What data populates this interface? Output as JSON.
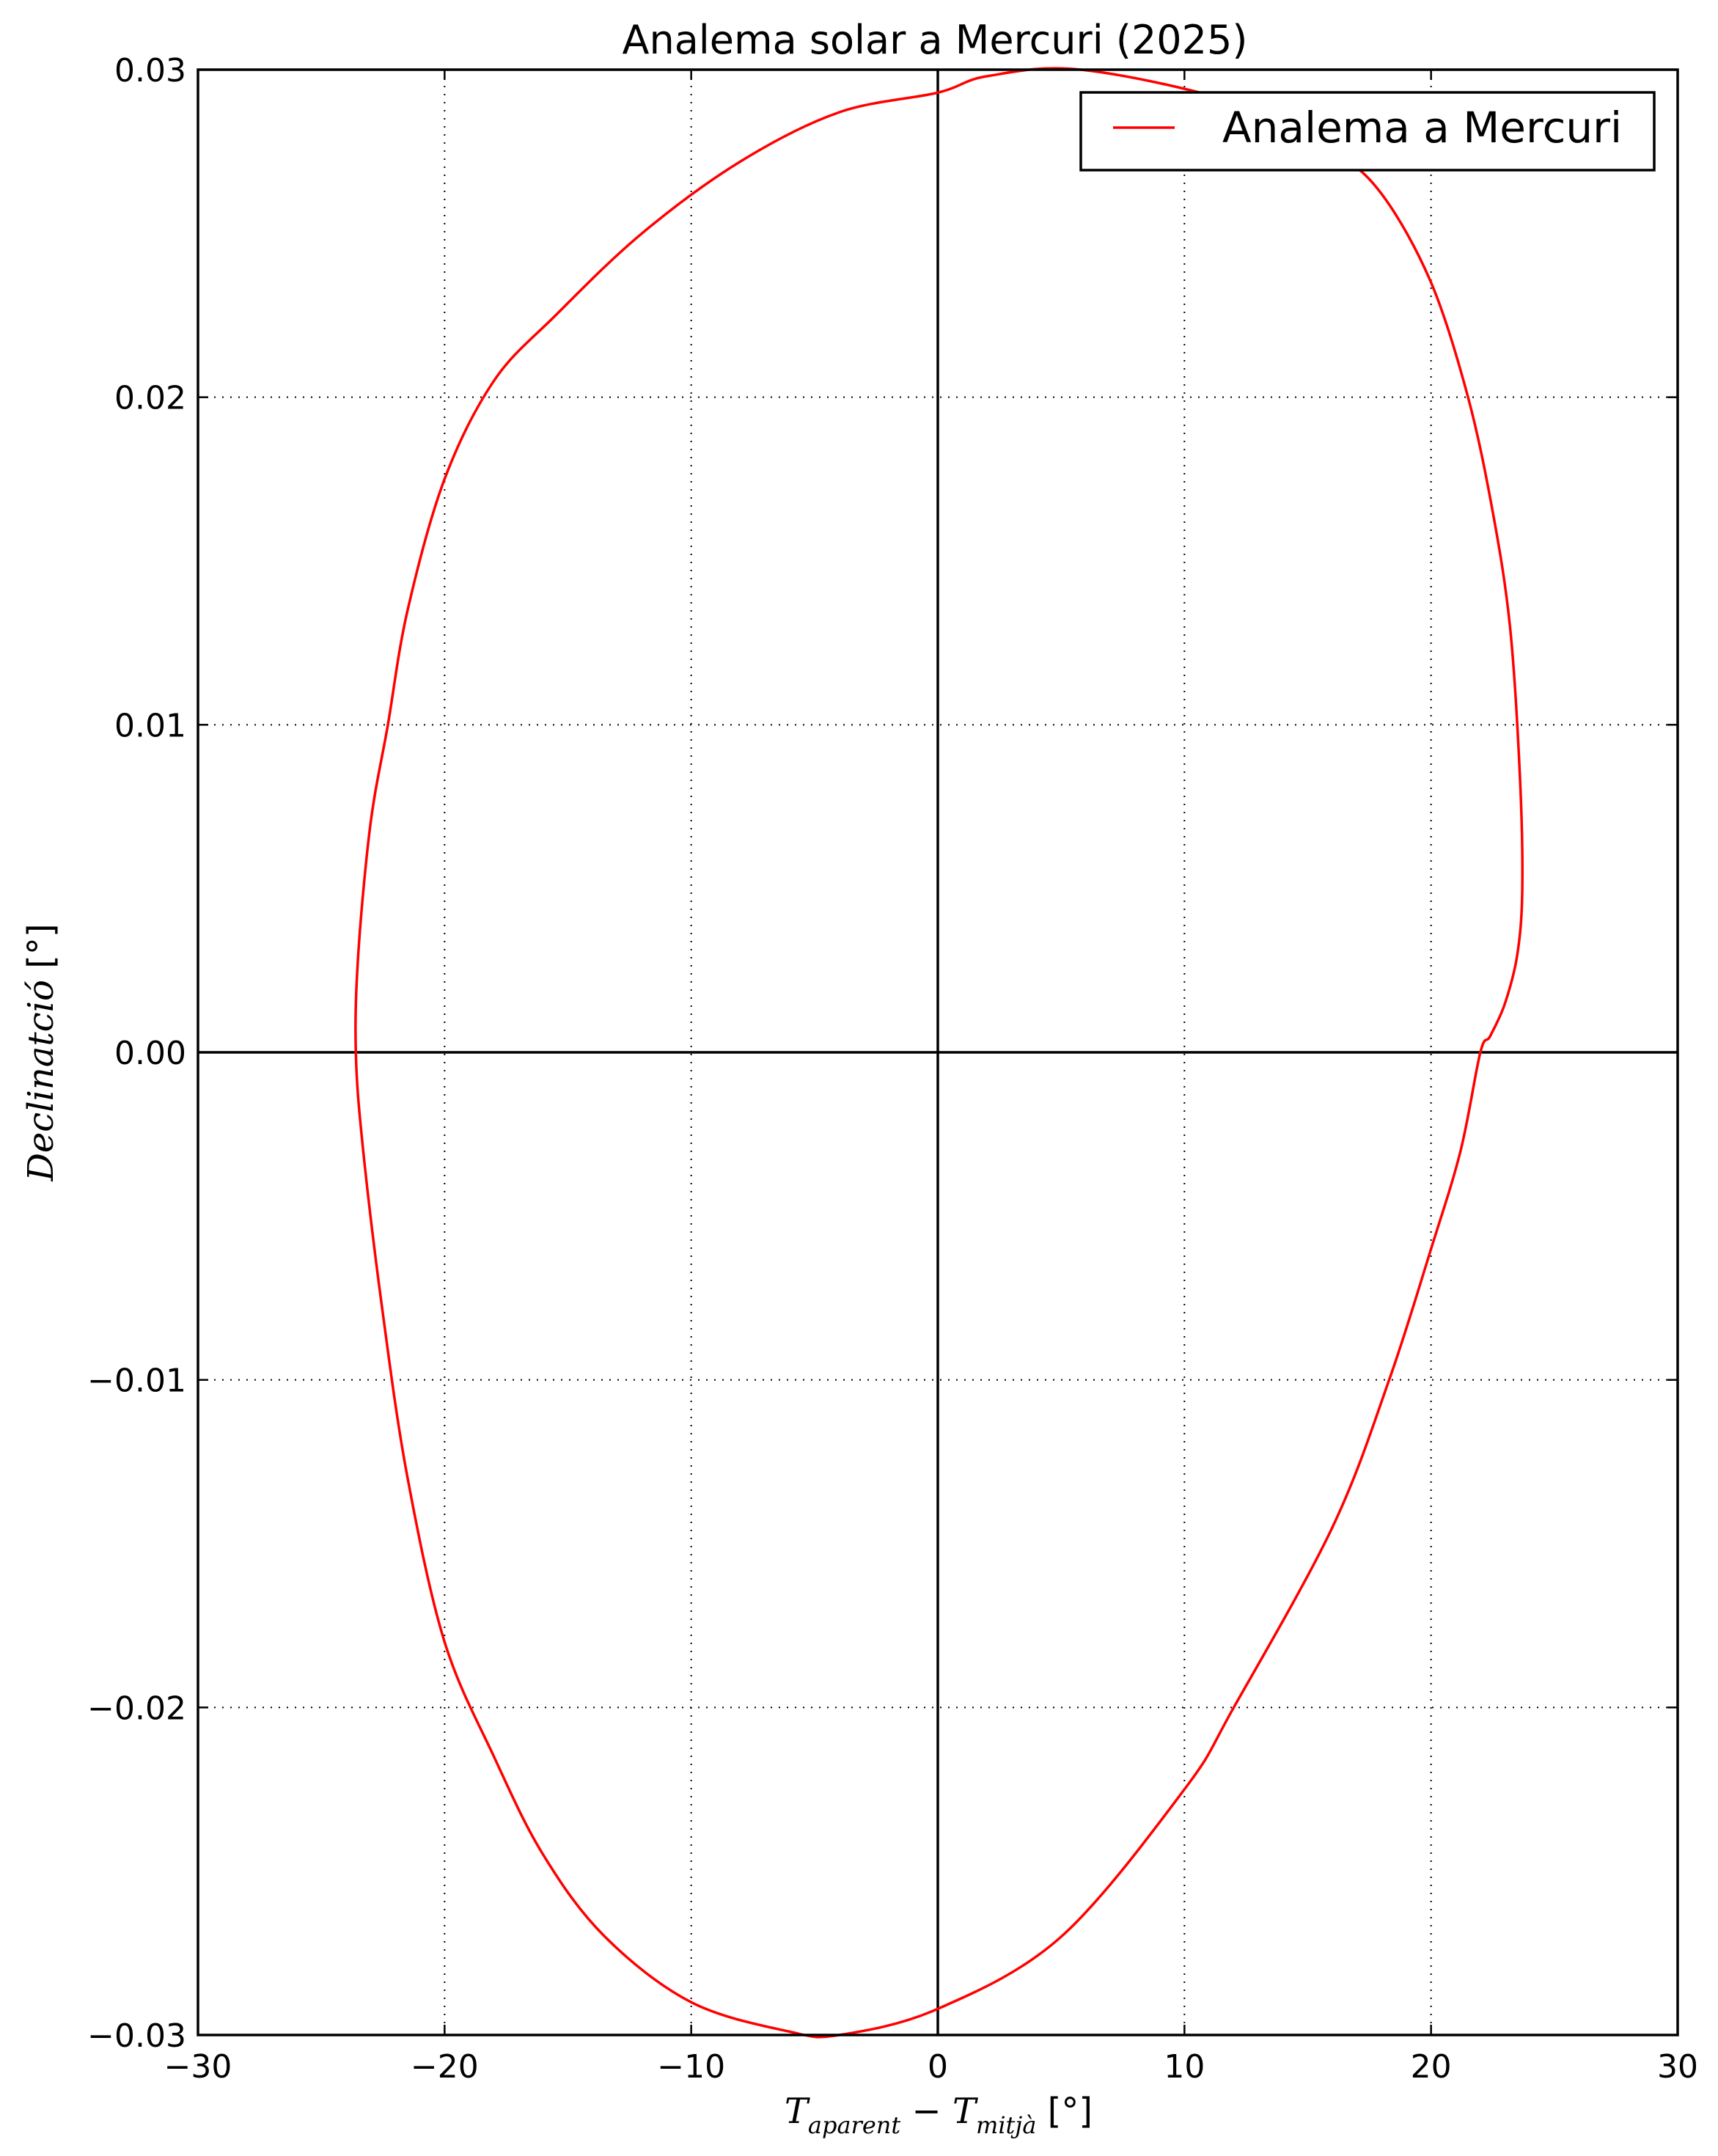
{
  "chart_data": {
    "type": "line",
    "title": "Analema solar a Mercuri (2025)",
    "xlabel": {
      "prefix": "T",
      "sub1": "aparent",
      "middle": " − T",
      "sub2": "mitjà",
      "unit": " [°]"
    },
    "ylabel": {
      "main": "Declinatció",
      "unit": " [°]"
    },
    "xlim": [
      -30,
      30
    ],
    "ylim": [
      -0.03,
      0.03
    ],
    "xticks": [
      -30,
      -20,
      -10,
      0,
      10,
      20,
      30
    ],
    "xtick_labels": [
      "−30",
      "−20",
      "−10",
      "0",
      "10",
      "20",
      "30"
    ],
    "yticks": [
      -0.03,
      -0.02,
      -0.01,
      0.0,
      0.01,
      0.02,
      0.03
    ],
    "ytick_labels": [
      "−0.03",
      "−0.02",
      "−0.01",
      "0.00",
      "0.01",
      "0.02",
      "0.03"
    ],
    "grid": true,
    "zero_lines": true,
    "legend": {
      "position": "top-right",
      "entries": [
        "Analema a Mercuri"
      ]
    },
    "series": [
      {
        "name": "Analema a Mercuri",
        "color": "#ff0000",
        "x": [
          5.8,
          12.0,
          16.0,
          18.0,
          20.0,
          21.5,
          22.5,
          23.2,
          23.6,
          23.7,
          23.5,
          23.0,
          22.4,
          22.0,
          21.2,
          20.0,
          18.3,
          16.0,
          12.0,
          10.0,
          5.0,
          0.0,
          -4.0,
          -6.0,
          -10.0,
          -13.5,
          -16.0,
          -18.0,
          -20.0,
          -21.5,
          -22.5,
          -23.3,
          -23.6,
          -23.5,
          -23.0,
          -22.3,
          -21.5,
          -20.0,
          -18.0,
          -15.5,
          -12.0,
          -8.0,
          -4.0,
          0.0,
          2.0,
          5.8
        ],
        "y": [
          0.03,
          0.029,
          0.0275,
          0.0262,
          0.0235,
          0.02,
          0.0165,
          0.013,
          0.0085,
          0.005,
          0.003,
          0.0015,
          0.0005,
          0.0,
          -0.003,
          -0.006,
          -0.01,
          -0.0145,
          -0.02,
          -0.0225,
          -0.027,
          -0.0292,
          -0.03,
          -0.0299,
          -0.029,
          -0.027,
          -0.0245,
          -0.0215,
          -0.018,
          -0.013,
          -0.008,
          -0.003,
          0.0,
          0.003,
          0.007,
          0.01,
          0.0135,
          0.0175,
          0.0205,
          0.0225,
          0.025,
          0.0272,
          0.0287,
          0.0293,
          0.0298,
          0.03
        ]
      }
    ]
  }
}
